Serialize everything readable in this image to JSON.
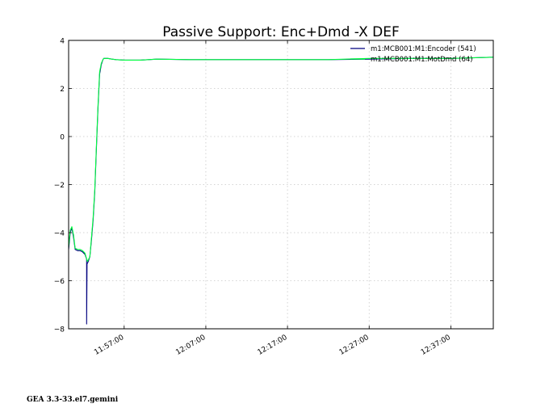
{
  "chart_data": {
    "type": "line",
    "title": "Passive Support:  Enc+Dmd -X DEF",
    "xlabel": "",
    "ylabel": "",
    "ylim": [
      -8,
      4
    ],
    "yticks": [
      4,
      2,
      0,
      -2,
      -4,
      -6,
      -8
    ],
    "ytick_labels": [
      "4",
      "2",
      "0",
      "−2",
      "−4",
      "−6",
      "−8"
    ],
    "xlim_minutes_after_11_57": [
      -6.8,
      45.2
    ],
    "xticks": [
      "11:57:00",
      "12:07:00",
      "12:17:00",
      "12:27:00",
      "12:37:00"
    ],
    "xtick_minutes": [
      0,
      10,
      20,
      30,
      40
    ],
    "grid": true,
    "legend_position": "top-right",
    "series": [
      {
        "name": "m1:MCB001:M1:Encoder (541)",
        "color": "#00007f",
        "x": [
          -6.8,
          -6.6,
          -6.4,
          -6.2,
          -6.0,
          -5.7,
          -5.4,
          -5.1,
          -4.8,
          -4.6,
          -4.6,
          -4.55,
          -4.4,
          -4.2,
          -4.0,
          -3.8,
          -3.6,
          -3.4,
          -3.2,
          -3.0,
          -2.8,
          -2.7,
          -2.6,
          -2.5,
          -2.3,
          -2.0,
          -1.5,
          -1.0,
          0.0,
          2.0,
          4.0,
          8.0,
          12.0,
          16.0,
          20.0,
          25.0,
          30.0,
          35.0,
          40.0,
          45.2
        ],
        "y": [
          -4.7,
          -4.0,
          -3.8,
          -4.2,
          -4.7,
          -4.75,
          -4.75,
          -4.8,
          -4.9,
          -5.1,
          -7.8,
          -5.3,
          -5.2,
          -5.0,
          -4.3,
          -3.5,
          -2.3,
          -0.5,
          1.2,
          2.6,
          3.0,
          3.1,
          3.2,
          3.25,
          3.25,
          3.25,
          3.22,
          3.2,
          3.18,
          3.18,
          3.22,
          3.2,
          3.2,
          3.2,
          3.2,
          3.2,
          3.22,
          3.25,
          3.25,
          3.3
        ]
      },
      {
        "name": "m1:MCB001:M1:MotDmd (64)",
        "color": "#00ff40",
        "x": [
          -6.8,
          -6.6,
          -6.4,
          -6.2,
          -6.0,
          -5.7,
          -5.4,
          -5.1,
          -4.8,
          -4.5,
          -4.2,
          -4.0,
          -3.8,
          -3.6,
          -3.4,
          -3.2,
          -3.0,
          -2.8,
          -2.6,
          -2.5,
          -2.3,
          -2.0,
          -1.5,
          -1.0,
          0.0,
          2.0,
          4.0,
          8.0,
          12.0,
          16.0,
          20.0,
          25.0,
          30.0,
          35.0,
          40.0,
          45.2
        ],
        "y": [
          -4.6,
          -3.9,
          -3.75,
          -4.1,
          -4.65,
          -4.7,
          -4.7,
          -4.75,
          -4.85,
          -5.2,
          -5.0,
          -4.2,
          -3.4,
          -2.2,
          -0.4,
          1.3,
          2.7,
          3.05,
          3.2,
          3.25,
          3.25,
          3.25,
          3.22,
          3.2,
          3.18,
          3.18,
          3.22,
          3.2,
          3.2,
          3.2,
          3.2,
          3.2,
          3.25,
          3.25,
          3.25,
          3.3
        ]
      }
    ]
  },
  "footer": {
    "text": "GEA 3.3-33.el7.gemini"
  }
}
